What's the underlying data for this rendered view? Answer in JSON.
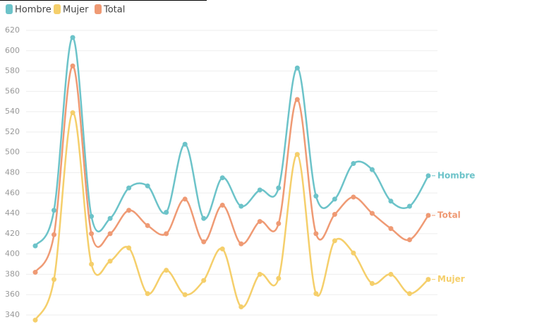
{
  "chart_data": {
    "type": "line",
    "categories": [
      null,
      null,
      null,
      null,
      null,
      null,
      null,
      null,
      null,
      null,
      null,
      null,
      null,
      null,
      null,
      null,
      null,
      null,
      null,
      null,
      null,
      null
    ],
    "series": [
      {
        "name": "Hombre",
        "color": "#6cc3c9",
        "values": [
          408,
          443,
          613,
          437,
          435,
          465,
          467,
          441,
          508,
          435,
          475,
          447,
          463,
          465,
          583,
          457,
          454,
          489,
          483,
          452,
          447,
          477
        ]
      },
      {
        "name": "Mujer",
        "color": "#f5cf6b",
        "values": [
          335,
          375,
          539,
          390,
          393,
          406,
          361,
          384,
          360,
          374,
          405,
          348,
          380,
          376,
          498,
          361,
          413,
          401,
          371,
          380,
          361,
          375
        ]
      },
      {
        "name": "Total",
        "color": "#ef9a74",
        "values": [
          382,
          419,
          585,
          420,
          420,
          443,
          428,
          420,
          454,
          412,
          448,
          410,
          432,
          430,
          552,
          420,
          439,
          456,
          440,
          425,
          414,
          438
        ]
      }
    ],
    "ylim": [
      330,
      625
    ],
    "yticks": [
      340,
      360,
      380,
      400,
      420,
      440,
      460,
      480,
      500,
      520,
      540,
      560,
      580,
      600,
      620
    ],
    "grid": true,
    "legend": "top-left"
  }
}
